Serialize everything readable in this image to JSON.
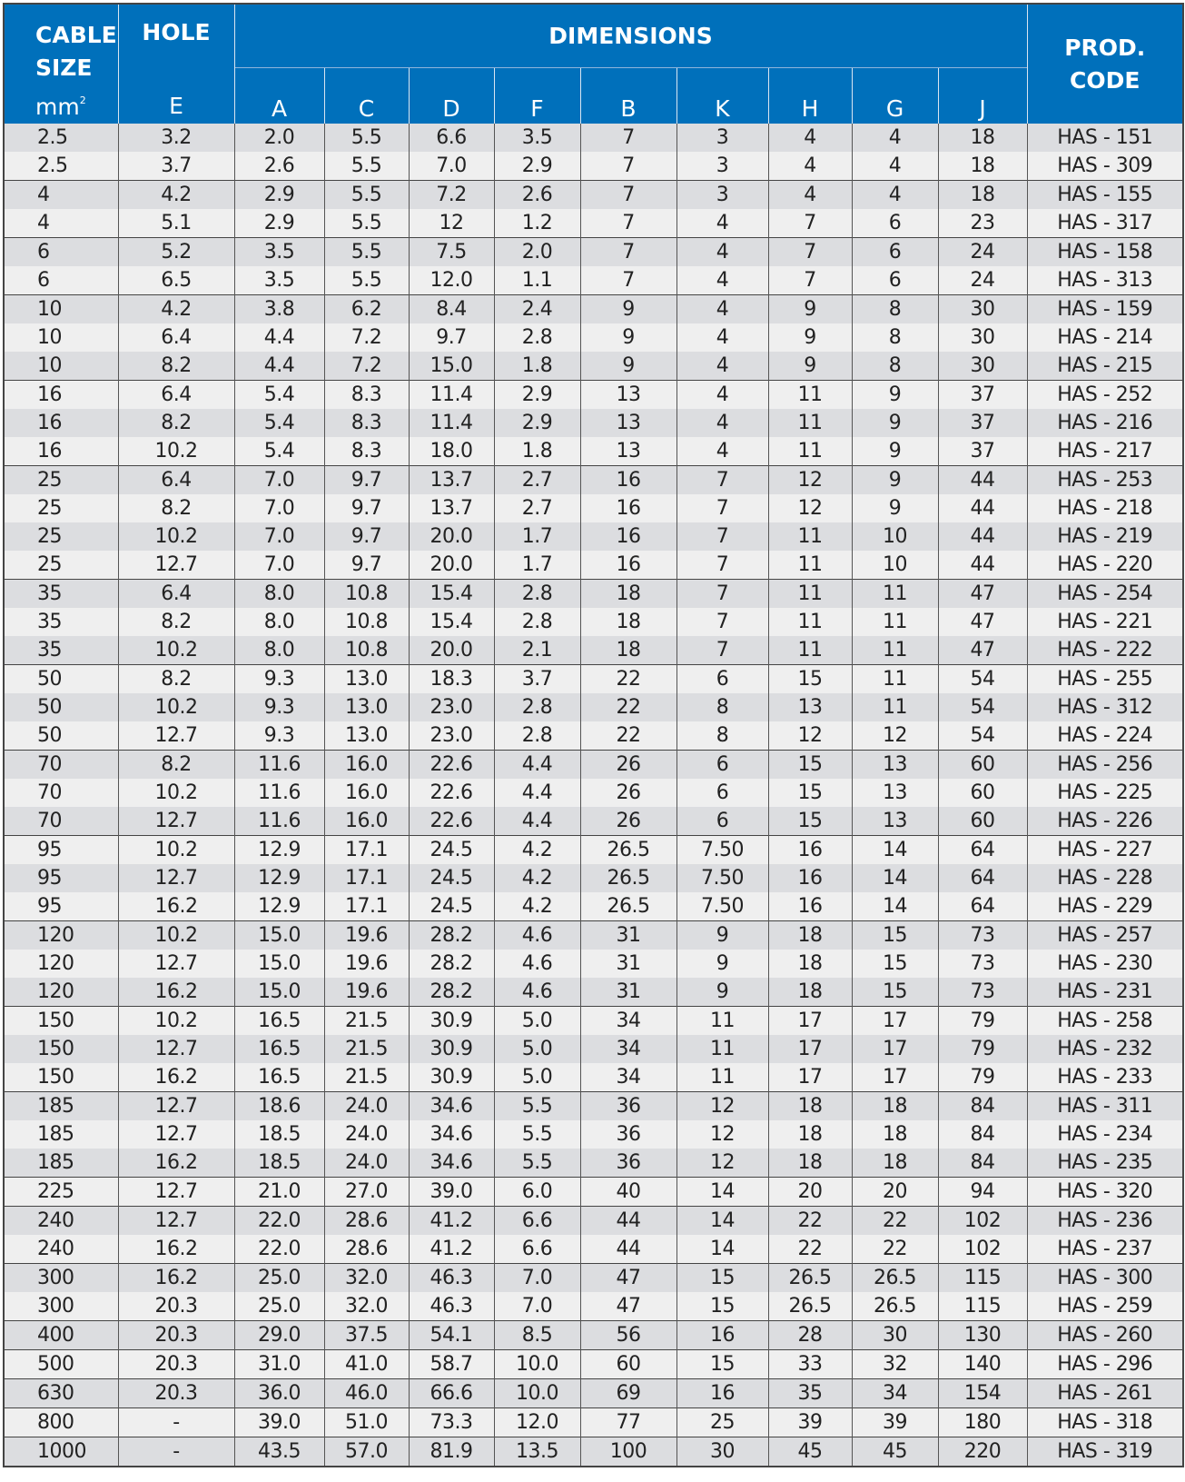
{
  "header": {
    "cable_size": "CABLE SIZE",
    "cable_unit": "mm",
    "cable_unit_sup": "2",
    "hole": "HOLE",
    "hole_sub": "E",
    "dimensions": "DIMENSIONS",
    "dims": [
      "A",
      "C",
      "D",
      "F",
      "B",
      "K",
      "H",
      "G",
      "J"
    ],
    "prod_code": "PROD. CODE"
  },
  "colors": {
    "header_bg": "#0070bb",
    "row_dark": "#dcdde0",
    "row_light": "#efefef"
  },
  "rows": [
    [
      "2.5",
      "3.2",
      "2.0",
      "5.5",
      "6.6",
      "3.5",
      "7",
      "3",
      "4",
      "4",
      "18",
      "HAS - 151"
    ],
    [
      "2.5",
      "3.7",
      "2.6",
      "5.5",
      "7.0",
      "2.9",
      "7",
      "3",
      "4",
      "4",
      "18",
      "HAS - 309"
    ],
    [
      "4",
      "4.2",
      "2.9",
      "5.5",
      "7.2",
      "2.6",
      "7",
      "3",
      "4",
      "4",
      "18",
      "HAS - 155"
    ],
    [
      "4",
      "5.1",
      "2.9",
      "5.5",
      "12",
      "1.2",
      "7",
      "4",
      "7",
      "6",
      "23",
      "HAS - 317"
    ],
    [
      "6",
      "5.2",
      "3.5",
      "5.5",
      "7.5",
      "2.0",
      "7",
      "4",
      "7",
      "6",
      "24",
      "HAS - 158"
    ],
    [
      "6",
      "6.5",
      "3.5",
      "5.5",
      "12.0",
      "1.1",
      "7",
      "4",
      "7",
      "6",
      "24",
      "HAS - 313"
    ],
    [
      "10",
      "4.2",
      "3.8",
      "6.2",
      "8.4",
      "2.4",
      "9",
      "4",
      "9",
      "8",
      "30",
      "HAS - 159"
    ],
    [
      "10",
      "6.4",
      "4.4",
      "7.2",
      "9.7",
      "2.8",
      "9",
      "4",
      "9",
      "8",
      "30",
      "HAS - 214"
    ],
    [
      "10",
      "8.2",
      "4.4",
      "7.2",
      "15.0",
      "1.8",
      "9",
      "4",
      "9",
      "8",
      "30",
      "HAS - 215"
    ],
    [
      "16",
      "6.4",
      "5.4",
      "8.3",
      "11.4",
      "2.9",
      "13",
      "4",
      "11",
      "9",
      "37",
      "HAS - 252"
    ],
    [
      "16",
      "8.2",
      "5.4",
      "8.3",
      "11.4",
      "2.9",
      "13",
      "4",
      "11",
      "9",
      "37",
      "HAS - 216"
    ],
    [
      "16",
      "10.2",
      "5.4",
      "8.3",
      "18.0",
      "1.8",
      "13",
      "4",
      "11",
      "9",
      "37",
      "HAS - 217"
    ],
    [
      "25",
      "6.4",
      "7.0",
      "9.7",
      "13.7",
      "2.7",
      "16",
      "7",
      "12",
      "9",
      "44",
      "HAS - 253"
    ],
    [
      "25",
      "8.2",
      "7.0",
      "9.7",
      "13.7",
      "2.7",
      "16",
      "7",
      "12",
      "9",
      "44",
      "HAS - 218"
    ],
    [
      "25",
      "10.2",
      "7.0",
      "9.7",
      "20.0",
      "1.7",
      "16",
      "7",
      "11",
      "10",
      "44",
      "HAS - 219"
    ],
    [
      "25",
      "12.7",
      "7.0",
      "9.7",
      "20.0",
      "1.7",
      "16",
      "7",
      "11",
      "10",
      "44",
      "HAS - 220"
    ],
    [
      "35",
      "6.4",
      "8.0",
      "10.8",
      "15.4",
      "2.8",
      "18",
      "7",
      "11",
      "11",
      "47",
      "HAS - 254"
    ],
    [
      "35",
      "8.2",
      "8.0",
      "10.8",
      "15.4",
      "2.8",
      "18",
      "7",
      "11",
      "11",
      "47",
      "HAS - 221"
    ],
    [
      "35",
      "10.2",
      "8.0",
      "10.8",
      "20.0",
      "2.1",
      "18",
      "7",
      "11",
      "11",
      "47",
      "HAS - 222"
    ],
    [
      "50",
      "8.2",
      "9.3",
      "13.0",
      "18.3",
      "3.7",
      "22",
      "6",
      "15",
      "11",
      "54",
      "HAS - 255"
    ],
    [
      "50",
      "10.2",
      "9.3",
      "13.0",
      "23.0",
      "2.8",
      "22",
      "8",
      "13",
      "11",
      "54",
      "HAS - 312"
    ],
    [
      "50",
      "12.7",
      "9.3",
      "13.0",
      "23.0",
      "2.8",
      "22",
      "8",
      "12",
      "12",
      "54",
      "HAS - 224"
    ],
    [
      "70",
      "8.2",
      "11.6",
      "16.0",
      "22.6",
      "4.4",
      "26",
      "6",
      "15",
      "13",
      "60",
      "HAS - 256"
    ],
    [
      "70",
      "10.2",
      "11.6",
      "16.0",
      "22.6",
      "4.4",
      "26",
      "6",
      "15",
      "13",
      "60",
      "HAS - 225"
    ],
    [
      "70",
      "12.7",
      "11.6",
      "16.0",
      "22.6",
      "4.4",
      "26",
      "6",
      "15",
      "13",
      "60",
      "HAS - 226"
    ],
    [
      "95",
      "10.2",
      "12.9",
      "17.1",
      "24.5",
      "4.2",
      "26.5",
      "7.50",
      "16",
      "14",
      "64",
      "HAS - 227"
    ],
    [
      "95",
      "12.7",
      "12.9",
      "17.1",
      "24.5",
      "4.2",
      "26.5",
      "7.50",
      "16",
      "14",
      "64",
      "HAS - 228"
    ],
    [
      "95",
      "16.2",
      "12.9",
      "17.1",
      "24.5",
      "4.2",
      "26.5",
      "7.50",
      "16",
      "14",
      "64",
      "HAS - 229"
    ],
    [
      "120",
      "10.2",
      "15.0",
      "19.6",
      "28.2",
      "4.6",
      "31",
      "9",
      "18",
      "15",
      "73",
      "HAS - 257"
    ],
    [
      "120",
      "12.7",
      "15.0",
      "19.6",
      "28.2",
      "4.6",
      "31",
      "9",
      "18",
      "15",
      "73",
      "HAS - 230"
    ],
    [
      "120",
      "16.2",
      "15.0",
      "19.6",
      "28.2",
      "4.6",
      "31",
      "9",
      "18",
      "15",
      "73",
      "HAS - 231"
    ],
    [
      "150",
      "10.2",
      "16.5",
      "21.5",
      "30.9",
      "5.0",
      "34",
      "11",
      "17",
      "17",
      "79",
      "HAS - 258"
    ],
    [
      "150",
      "12.7",
      "16.5",
      "21.5",
      "30.9",
      "5.0",
      "34",
      "11",
      "17",
      "17",
      "79",
      "HAS - 232"
    ],
    [
      "150",
      "16.2",
      "16.5",
      "21.5",
      "30.9",
      "5.0",
      "34",
      "11",
      "17",
      "17",
      "79",
      "HAS - 233"
    ],
    [
      "185",
      "12.7",
      "18.6",
      "24.0",
      "34.6",
      "5.5",
      "36",
      "12",
      "18",
      "18",
      "84",
      "HAS - 311"
    ],
    [
      "185",
      "12.7",
      "18.5",
      "24.0",
      "34.6",
      "5.5",
      "36",
      "12",
      "18",
      "18",
      "84",
      "HAS - 234"
    ],
    [
      "185",
      "16.2",
      "18.5",
      "24.0",
      "34.6",
      "5.5",
      "36",
      "12",
      "18",
      "18",
      "84",
      "HAS - 235"
    ],
    [
      "225",
      "12.7",
      "21.0",
      "27.0",
      "39.0",
      "6.0",
      "40",
      "14",
      "20",
      "20",
      "94",
      "HAS - 320"
    ],
    [
      "240",
      "12.7",
      "22.0",
      "28.6",
      "41.2",
      "6.6",
      "44",
      "14",
      "22",
      "22",
      "102",
      "HAS - 236"
    ],
    [
      "240",
      "16.2",
      "22.0",
      "28.6",
      "41.2",
      "6.6",
      "44",
      "14",
      "22",
      "22",
      "102",
      "HAS - 237"
    ],
    [
      "300",
      "16.2",
      "25.0",
      "32.0",
      "46.3",
      "7.0",
      "47",
      "15",
      "26.5",
      "26.5",
      "115",
      "HAS - 300"
    ],
    [
      "300",
      "20.3",
      "25.0",
      "32.0",
      "46.3",
      "7.0",
      "47",
      "15",
      "26.5",
      "26.5",
      "115",
      "HAS - 259"
    ],
    [
      "400",
      "20.3",
      "29.0",
      "37.5",
      "54.1",
      "8.5",
      "56",
      "16",
      "28",
      "30",
      "130",
      "HAS - 260"
    ],
    [
      "500",
      "20.3",
      "31.0",
      "41.0",
      "58.7",
      "10.0",
      "60",
      "15",
      "33",
      "32",
      "140",
      "HAS - 296"
    ],
    [
      "630",
      "20.3",
      "36.0",
      "46.0",
      "66.6",
      "10.0",
      "69",
      "16",
      "35",
      "34",
      "154",
      "HAS - 261"
    ],
    [
      "800",
      "-",
      "39.0",
      "51.0",
      "73.3",
      "12.0",
      "77",
      "25",
      "39",
      "39",
      "180",
      "HAS - 318"
    ],
    [
      "1000",
      "-",
      "43.5",
      "57.0",
      "81.9",
      "13.5",
      "100",
      "30",
      "45",
      "45",
      "220",
      "HAS - 319"
    ]
  ]
}
